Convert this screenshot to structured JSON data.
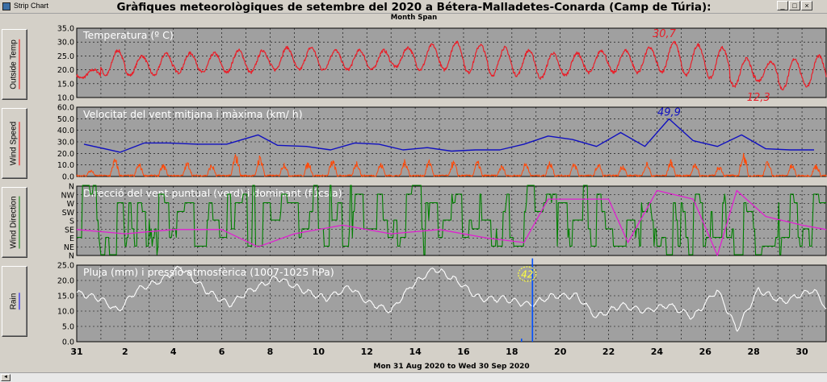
{
  "window": {
    "title": "Strip Chart",
    "icon": "app-icon",
    "controls": [
      "minimize",
      "maximize",
      "close"
    ]
  },
  "header": {
    "title": "Gràfiques meteorològiques de setembre del 2020 a Bétera-Malladetes-Conarda (Camp de Túria):",
    "subtitle": "Month Span"
  },
  "side_buttons": [
    {
      "label": "Outside Temp",
      "underline_color": "#ff0000"
    },
    {
      "label": "Wind Speed",
      "underline_color": "#ff0000"
    },
    {
      "label": "Wind Direction",
      "underline_color": "#008000"
    },
    {
      "label": "Rain",
      "underline_color": "#0000ff"
    }
  ],
  "colors": {
    "panel_bg": "#a0a0a0",
    "grid": "#000000",
    "temperature": "#e8202a",
    "wind_max": "#1010c0",
    "wind_avg": "#ff4a0a",
    "direction": "#008000",
    "dominant": "#e020d0",
    "pressure": "#ffffff",
    "rain": "#0050ff",
    "rain_badge": "#ffff40"
  },
  "date_range": "Mon 31 Aug 2020  to  Wed 30 Sep 2020",
  "chart_data": [
    {
      "type": "line",
      "title": "Temperatura (º C)",
      "ylim": [
        10.0,
        35.0
      ],
      "yticks": [
        "35.0",
        "30.0",
        "25.0",
        "20.0",
        "15.0",
        "10.0"
      ],
      "annotations": [
        {
          "text": "30,7",
          "day": 24.3,
          "value": 30.7
        },
        {
          "text": "12,3",
          "day": 28.2,
          "value": 12.3
        }
      ],
      "series": [
        {
          "daily_max": [
            20,
            27,
            25,
            26,
            26,
            26,
            27,
            27,
            28,
            28,
            27,
            27,
            27,
            28,
            29,
            30,
            29,
            28,
            27,
            26,
            26,
            27,
            27,
            28,
            30,
            29,
            28,
            24,
            23,
            24,
            25,
            23
          ],
          "daily_min": [
            17,
            18,
            18,
            18,
            19,
            19,
            19,
            19,
            20,
            20,
            20,
            20,
            20,
            21,
            20,
            20,
            19,
            18,
            18,
            17,
            18,
            19,
            19,
            19,
            19,
            18,
            17,
            14,
            16,
            13,
            14,
            15
          ]
        }
      ]
    },
    {
      "type": "line",
      "title": "Velocitat del vent mitjana i màxima (km/ h)",
      "ylim": [
        0.0,
        60.0
      ],
      "yticks": [
        "60.0",
        "50.0",
        "40.0",
        "30.0",
        "20.0",
        "10.0",
        "0.0"
      ],
      "annotations": [
        {
          "text": "49,9",
          "day": 24.5,
          "value": 49.9
        }
      ],
      "series": [
        {
          "name": "max",
          "x": [
            0.3,
            1.8,
            2.8,
            3.8,
            5.0,
            6.2,
            7.5,
            8.3,
            9.5,
            10.5,
            11.5,
            12.5,
            13.5,
            14.5,
            15.5,
            16.5,
            17.5,
            18.5,
            19.5,
            20.5,
            21.5,
            22.5,
            23.5,
            24.5,
            25.5,
            26.5,
            27.5,
            28.5,
            29.5,
            30.5
          ],
          "values": [
            28,
            21,
            29,
            29,
            28,
            28,
            36,
            27,
            26,
            23,
            29,
            28,
            23,
            25,
            22,
            23,
            23,
            28,
            35,
            32,
            26,
            38,
            26,
            49.9,
            31,
            26,
            36,
            24,
            23,
            23
          ]
        },
        {
          "name": "avg",
          "daily_peak": [
            6,
            16,
            12,
            11,
            13,
            11,
            20,
            19,
            13,
            13,
            15,
            14,
            12,
            15,
            15,
            14,
            14,
            10,
            13,
            14,
            12,
            12,
            11,
            13,
            15,
            13,
            10,
            22,
            14,
            11,
            11
          ]
        }
      ]
    },
    {
      "type": "line",
      "title": "Direcció del vent puntual (verd) i dominant (fúcsia)",
      "yticks": [
        "N",
        "NW",
        "W",
        "SW",
        "S",
        "SE",
        "E",
        "NE",
        "N"
      ],
      "series": [
        {
          "name": "dominant",
          "x": [
            0,
            2,
            4,
            6,
            7.5,
            9,
            11,
            13,
            15,
            17,
            18.5,
            19.5,
            21,
            22,
            22.8,
            24,
            25.5,
            26.5,
            27.3,
            28.5,
            30,
            31
          ],
          "values": [
            3,
            2.5,
            3,
            3,
            1,
            2.5,
            3.5,
            2.5,
            3,
            2,
            1.5,
            6.5,
            6.5,
            6.5,
            1.5,
            7.5,
            6.5,
            0,
            7.5,
            4.5,
            3.5,
            3
          ]
        }
      ]
    },
    {
      "type": "line",
      "title": "Pluja (mm) i pressió atmosfèrica (1007-1025 hPa)",
      "ylim": [
        0.0,
        25.0
      ],
      "yticks": [
        "25.0",
        "20.0",
        "15.0",
        "10.0",
        "5.0",
        "0.0"
      ],
      "annotations": [
        {
          "text": "42",
          "day": 18.9,
          "value": 42
        }
      ],
      "series": [
        {
          "name": "pressure",
          "x": [
            0,
            1,
            1.7,
            2.5,
            3.5,
            4.3,
            5.3,
            6.3,
            7,
            8.3,
            9.3,
            10.3,
            11.3,
            12,
            13,
            13.8,
            14.8,
            15.7,
            16.7,
            17.7,
            18.7,
            19.7,
            20.7,
            21.5,
            22.5,
            23.5,
            24.5,
            25.5,
            26.5,
            27.3,
            28.2,
            29.2,
            30.5,
            31
          ],
          "values": [
            16,
            14,
            10,
            17,
            20,
            24.5,
            17,
            12,
            16,
            21,
            17,
            14,
            18,
            13,
            10,
            18,
            24,
            20,
            14,
            14,
            12,
            15,
            15,
            8,
            12,
            10,
            12,
            8,
            17,
            4,
            17,
            13,
            17,
            11
          ]
        },
        {
          "name": "rain",
          "x": [
            18.4,
            18.85
          ],
          "values": [
            1,
            42
          ]
        }
      ]
    }
  ],
  "x_axis": {
    "ticks": [
      "31",
      "2",
      "4",
      "6",
      "8",
      "10",
      "12",
      "14",
      "16",
      "18",
      "20",
      "22",
      "24",
      "26",
      "28",
      "30"
    ]
  },
  "scrollbar": {
    "left_arrow": "◄"
  }
}
